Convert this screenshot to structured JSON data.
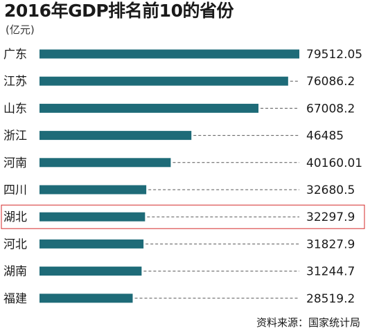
{
  "chart_data": {
    "type": "bar",
    "orientation": "horizontal",
    "title": "2016年GDP排名前10的省份",
    "unit": "(亿元)",
    "categories": [
      "广东",
      "江苏",
      "山东",
      "浙江",
      "河南",
      "四川",
      "湖北",
      "河北",
      "湖南",
      "福建"
    ],
    "values": [
      79512.05,
      76086.2,
      67008.2,
      46485,
      40160.01,
      32680.5,
      32297.9,
      31827.9,
      31244.7,
      28519.2
    ],
    "value_labels": [
      "79512.05",
      "76086.2",
      "67008.2",
      "46485",
      "40160.01",
      "32680.5",
      "32297.9",
      "31827.9",
      "31244.7",
      "28519.2"
    ],
    "highlighted_category": "湖北",
    "xlim": [
      0,
      79512.05
    ],
    "grid": false,
    "legend": "none"
  },
  "colors": {
    "bar": "#1e6b78",
    "leader_line": "#555555",
    "highlight_border": "#d42a2a"
  },
  "source": "资料来源：国家统计局"
}
